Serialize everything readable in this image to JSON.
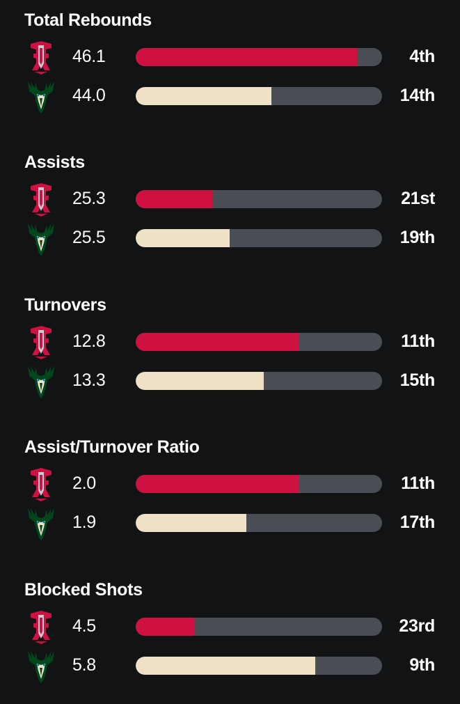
{
  "colors": {
    "background": "#111315",
    "track": "#4a4e54",
    "home_bar": "#ce1141",
    "away_bar": "#eee1c6"
  },
  "teams": {
    "home": {
      "icon": "rockets-logo-icon"
    },
    "away": {
      "icon": "bucks-logo-icon"
    }
  },
  "sections": [
    {
      "title": "Total Rebounds",
      "home": {
        "value": "46.1",
        "fill": 0.9,
        "rank": "4th"
      },
      "away": {
        "value": "44.0",
        "fill": 0.55,
        "rank": "14th"
      }
    },
    {
      "title": "Assists",
      "home": {
        "value": "25.3",
        "fill": 0.31,
        "rank": "21st"
      },
      "away": {
        "value": "25.5",
        "fill": 0.38,
        "rank": "19th"
      }
    },
    {
      "title": "Turnovers",
      "home": {
        "value": "12.8",
        "fill": 0.66,
        "rank": "11th"
      },
      "away": {
        "value": "13.3",
        "fill": 0.52,
        "rank": "15th"
      }
    },
    {
      "title": "Assist/Turnover Ratio",
      "home": {
        "value": "2.0",
        "fill": 0.66,
        "rank": "11th"
      },
      "away": {
        "value": "1.9",
        "fill": 0.45,
        "rank": "17th"
      }
    },
    {
      "title": "Blocked Shots",
      "home": {
        "value": "4.5",
        "fill": 0.24,
        "rank": "23rd"
      },
      "away": {
        "value": "5.8",
        "fill": 0.73,
        "rank": "9th"
      }
    }
  ]
}
